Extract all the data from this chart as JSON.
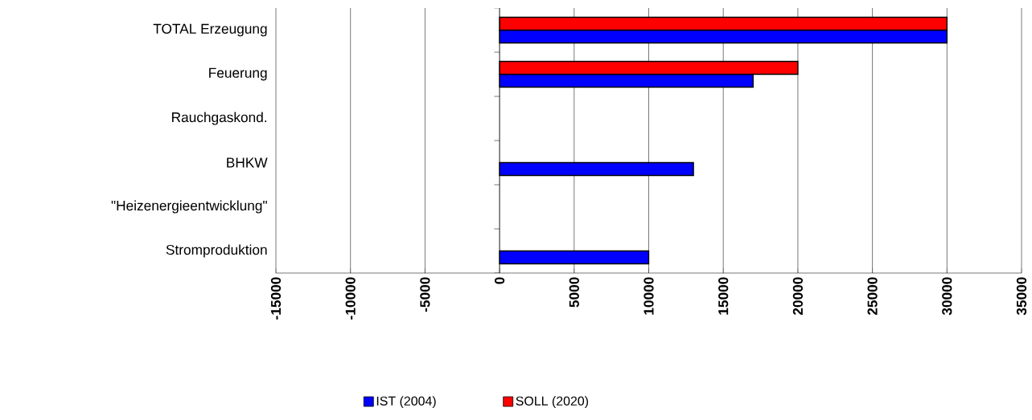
{
  "chart_data": {
    "type": "bar",
    "orientation": "horizontal",
    "categories": [
      "TOTAL Erzeugung",
      "Feuerung",
      "Rauchgaskond.",
      "BHKW",
      "\"Heizenergieentwicklung\"",
      "Stromproduktion"
    ],
    "series": [
      {
        "name": "IST (2004)",
        "color": "#0000ff",
        "values": [
          30000,
          17000,
          null,
          13000,
          null,
          10000
        ]
      },
      {
        "name": "SOLL (2020)",
        "color": "#ff0000",
        "values": [
          30000,
          20000,
          null,
          null,
          null,
          null
        ]
      }
    ],
    "xlim": [
      -15000,
      35000
    ],
    "xticks": [
      -15000,
      -10000,
      -5000,
      0,
      5000,
      10000,
      15000,
      20000,
      25000,
      30000,
      35000
    ],
    "grid": "x",
    "legend": "bottom"
  }
}
